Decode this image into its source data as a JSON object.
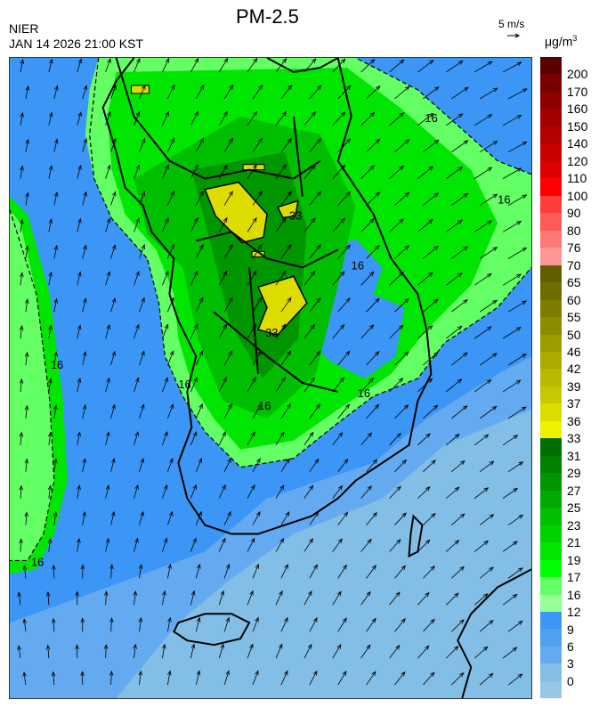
{
  "header": {
    "title": "PM-2.5",
    "organization": "NIER",
    "datetime": "JAN 14 2026 21:00 KST",
    "wind_scale_label": "5 m/s",
    "unit": "μg/m",
    "unit_superscript": "3"
  },
  "legend": {
    "tick_labels": [
      "200",
      "170",
      "160",
      "150",
      "140",
      "120",
      "110",
      "100",
      "90",
      "80",
      "76",
      "70",
      "65",
      "60",
      "55",
      "50",
      "46",
      "42",
      "39",
      "37",
      "36",
      "33",
      "31",
      "29",
      "27",
      "25",
      "23",
      "21",
      "19",
      "17",
      "16",
      "12",
      "9",
      "6",
      "3",
      "0"
    ],
    "colors": [
      "#5a0000",
      "#780000",
      "#8c0000",
      "#a00000",
      "#b40000",
      "#c80000",
      "#dc0000",
      "#ff0000",
      "#ff3c3c",
      "#ff5a5a",
      "#ff7878",
      "#ff9696",
      "#5f5f00",
      "#6e6e00",
      "#7d7d00",
      "#8c8c00",
      "#9b9b00",
      "#aaaa00",
      "#b9b900",
      "#c8c800",
      "#dcdc00",
      "#f0f000",
      "#006e00",
      "#008200",
      "#009600",
      "#00aa00",
      "#00be00",
      "#00d200",
      "#00e600",
      "#00ff00",
      "#64ff64",
      "#96ff96",
      "#3c96f5",
      "#50a0f0",
      "#64aaf0",
      "#82bee6",
      "#96c8e6"
    ]
  },
  "map": {
    "contour_labels": [
      "16",
      "16",
      "16",
      "16",
      "16",
      "16",
      "16",
      "16",
      "33",
      "33"
    ],
    "colors": {
      "sea": "#3c96f5",
      "sea_light": "#82bee6",
      "sea_mid": "#64aaf0",
      "land_light_green": "#64ff64",
      "green": "#00e600",
      "green_dark": "#00be00",
      "green_darker": "#009600",
      "yellow": "#dcdc00"
    }
  }
}
